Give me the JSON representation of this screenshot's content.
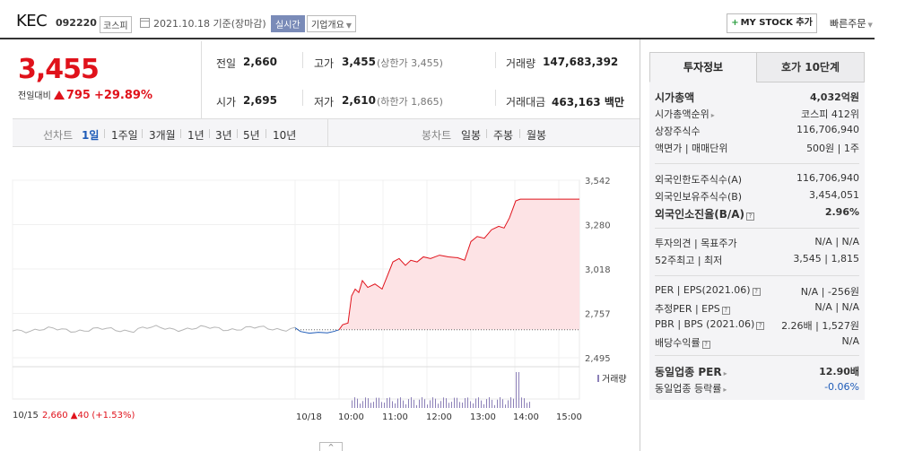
{
  "header": {
    "name": "KEC",
    "code": "092220",
    "market": "코스피",
    "date": "2021.10.18 기준(장마감)",
    "realtime": "실시간",
    "overview": "기업개요",
    "mystock": "MY STOCK 추가",
    "quick_order": "빠른주문"
  },
  "price": {
    "current": "3,455",
    "change_label": "전일대비",
    "change": "795",
    "change_pct": "+29.89%",
    "direction": "up"
  },
  "stats": {
    "prev_label": "전일",
    "prev": "2,660",
    "open_label": "시가",
    "open": "2,695",
    "high_label": "고가",
    "high": "3,455",
    "upper_limit": "(상한가 3,455)",
    "low_label": "저가",
    "low": "2,610",
    "lower_limit": "(하한가 1,865)",
    "volume_label": "거래량",
    "volume": "147,683,392",
    "amount_label": "거래대금",
    "amount": "463,163 백만"
  },
  "chart_tabs": {
    "line_label": "선차트",
    "line_items": [
      "1일",
      "1주일",
      "3개월",
      "1년",
      "3년",
      "5년",
      "10년"
    ],
    "line_active": "1일",
    "candle_label": "봉차트",
    "candle_items": [
      "일봉",
      "주봉",
      "월봉"
    ]
  },
  "right_panel": {
    "tabs": [
      "투자정보",
      "호가 10단계"
    ],
    "active_tab": "투자정보",
    "rows1": [
      {
        "label": "시가총액",
        "value": "4,032억원",
        "bold": true
      },
      {
        "label": "시가총액순위",
        "value": "코스피 412위"
      },
      {
        "label": "상장주식수",
        "value": "116,706,940"
      },
      {
        "label": "액면가 | 매매단위",
        "value": "500원 | 1주"
      }
    ],
    "rows2": [
      {
        "label": "외국인한도주식수(A)",
        "value": "116,706,940"
      },
      {
        "label": "외국인보유주식수(B)",
        "value": "3,454,051"
      },
      {
        "label": "외국인소진율(B/A)",
        "value": "2.96%",
        "bold": true
      }
    ],
    "rows3": [
      {
        "label": "투자의견 | 목표주가",
        "value": "N/A | N/A"
      },
      {
        "label": "52주최고 | 최저",
        "value": "3,545 | 1,815"
      }
    ],
    "rows4": [
      {
        "label": "PER | EPS(2021.06)",
        "value": "N/A | -256원"
      },
      {
        "label": "추정PER | EPS",
        "value": "N/A | N/A"
      },
      {
        "label": "PBR | BPS (2021.06)",
        "value": "2.26배 | 1,527원"
      },
      {
        "label": "배당수익률",
        "value": "N/A"
      }
    ],
    "rows5": [
      {
        "label": "동일업종 PER",
        "value": "12.90배",
        "bold": true
      },
      {
        "label": "동일업종 등락률",
        "value": "-0.06%",
        "value_color": "#1e5bb8"
      }
    ]
  },
  "chart_data": {
    "type": "line",
    "title": "",
    "y_ticks": [
      "3,542",
      "3,280",
      "3,018",
      "2,757",
      "2,495"
    ],
    "ylim": [
      2495,
      3542
    ],
    "baseline": 2660,
    "prev_day_label": "10/15",
    "prev_day_summary": "2,660 ▲40 (+1.53%)",
    "x_ticks": [
      "10/18",
      "10:00",
      "11:00",
      "12:00",
      "13:00",
      "14:00",
      "15:00"
    ],
    "volume_label": "거래량",
    "colors": {
      "prev_day": "#b5b5b5",
      "below": "#1e5bb8",
      "above": "#e0121b",
      "fill": "#fde3e5",
      "volume": "#8c80b8"
    }
  }
}
